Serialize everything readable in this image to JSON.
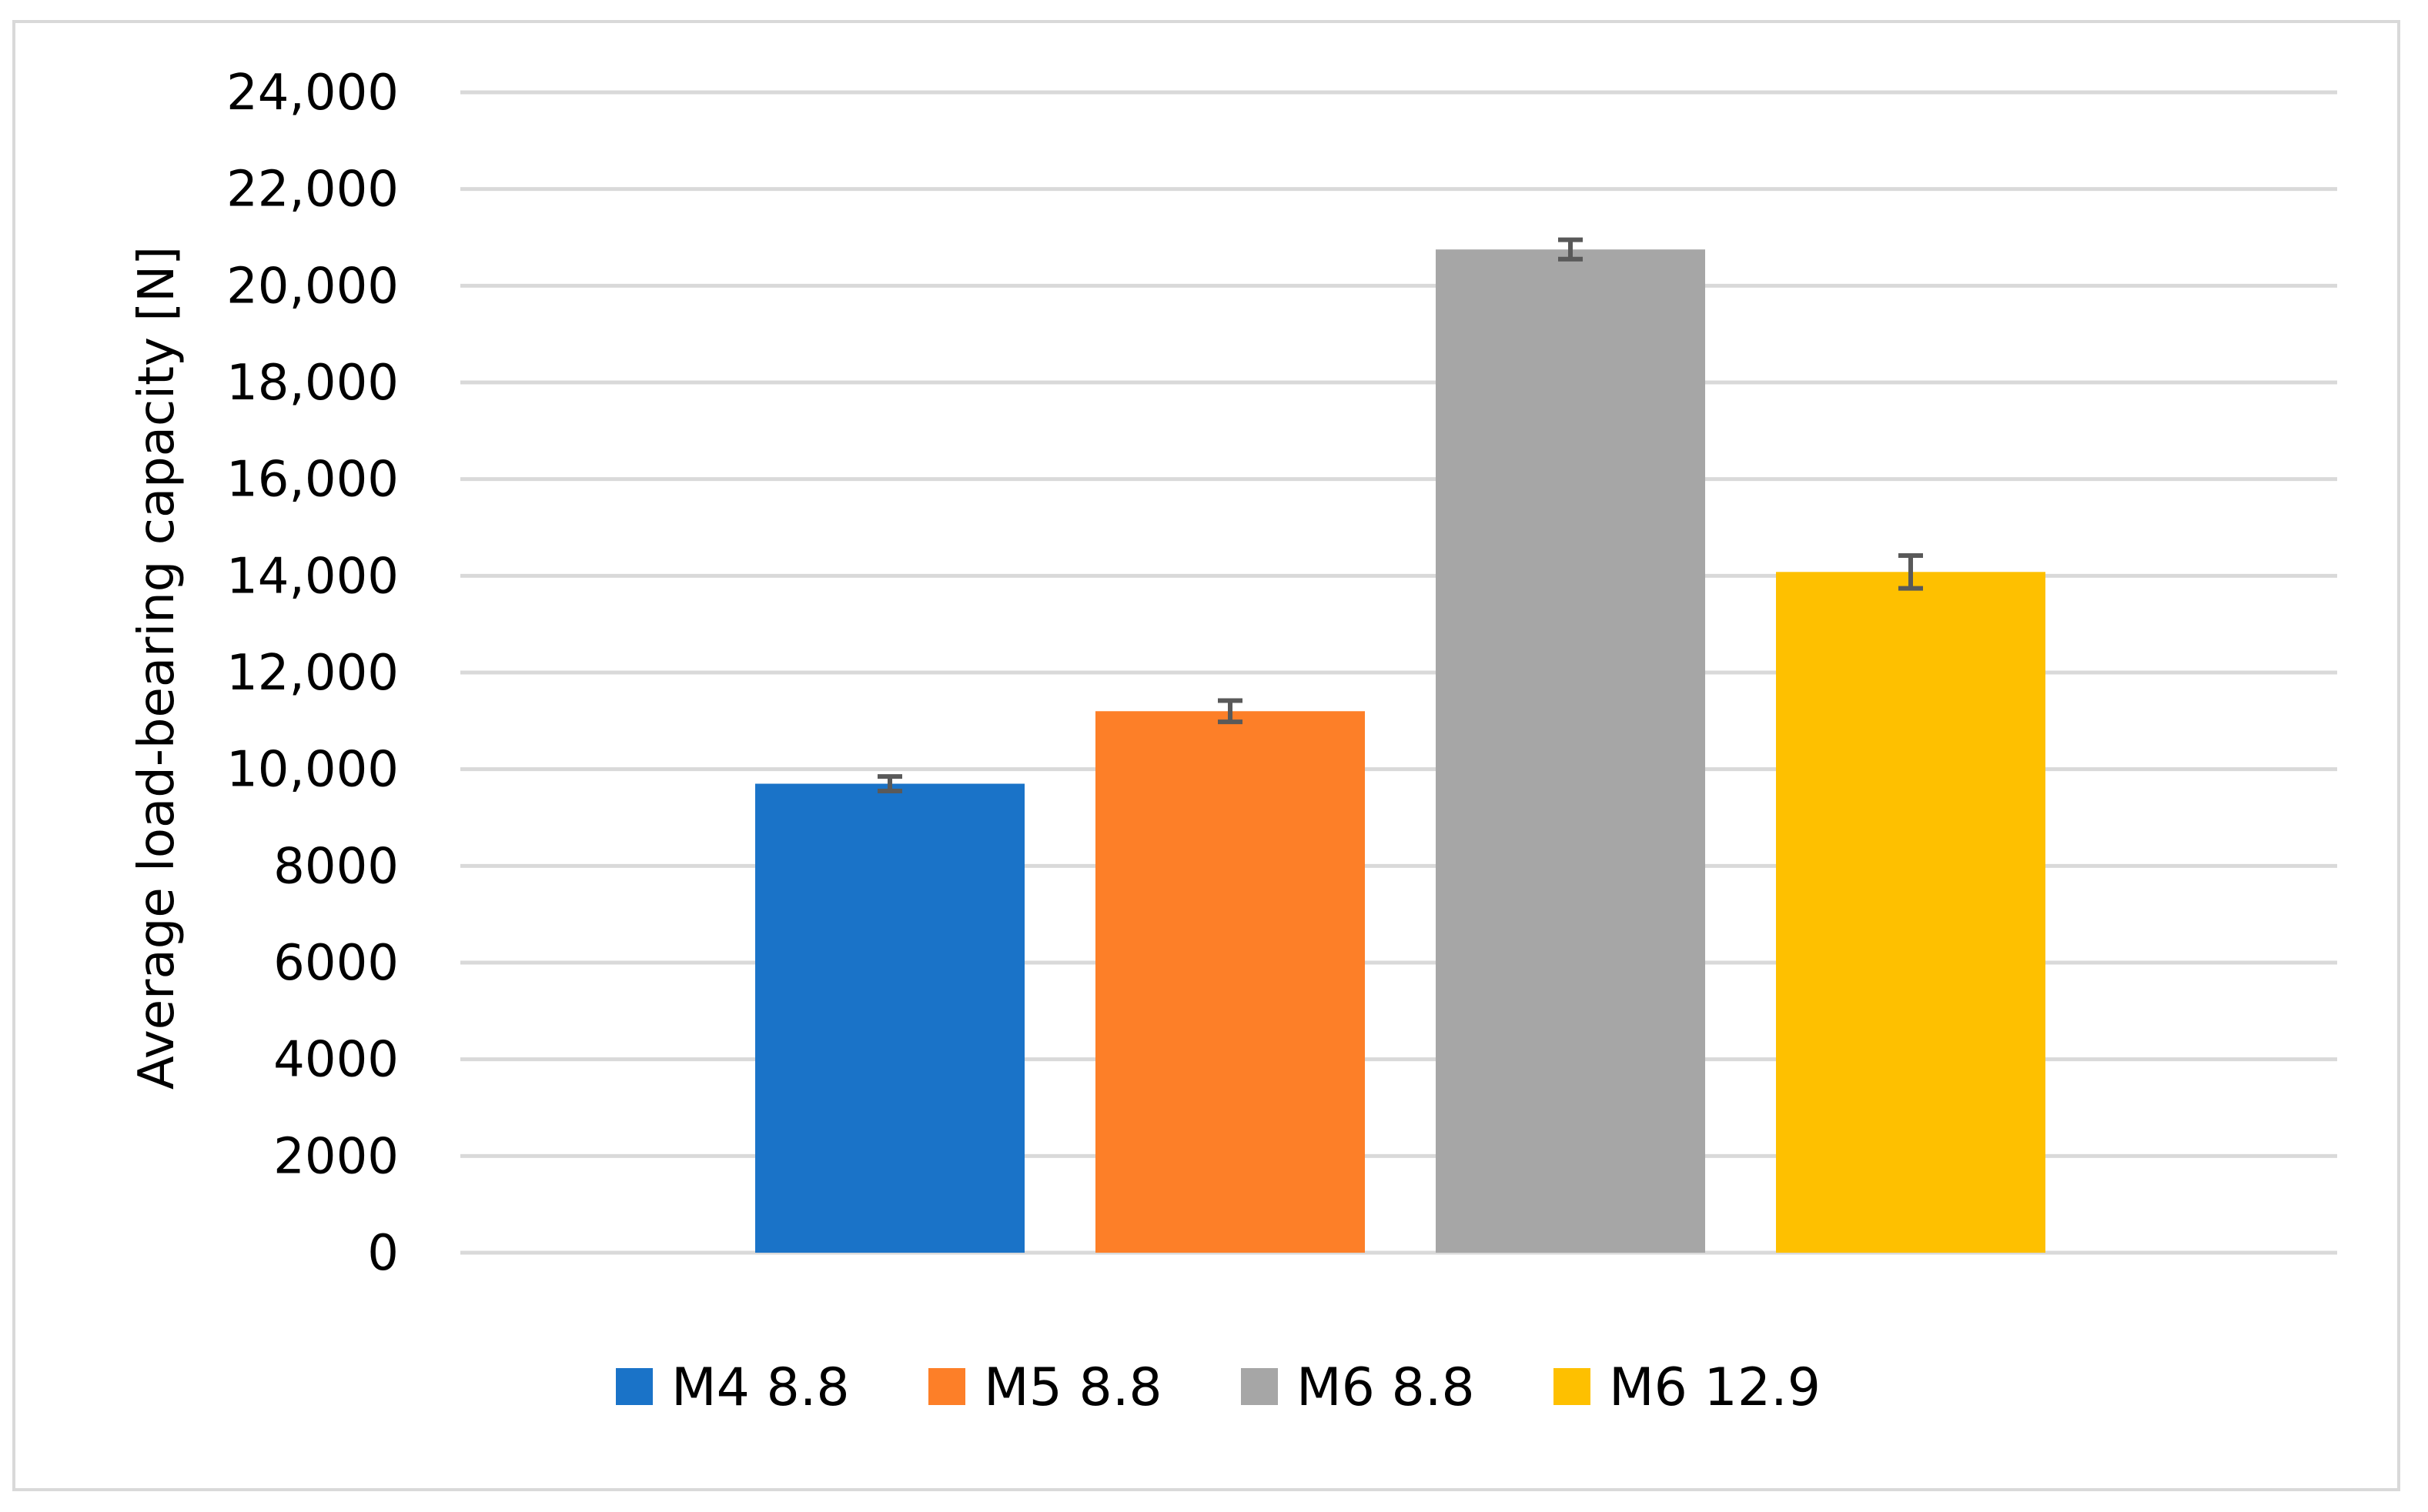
{
  "chart_data": {
    "type": "bar",
    "title": "",
    "xlabel": "",
    "ylabel": "Average load-bearing capacity [N]",
    "ylim": [
      0,
      24000
    ],
    "y_ticks": [
      0,
      2000,
      4000,
      6000,
      8000,
      10000,
      12000,
      14000,
      16000,
      18000,
      20000,
      22000,
      24000
    ],
    "y_tick_labels": [
      "0",
      "2000",
      "4000",
      "6000",
      "8000",
      "10,000",
      "12,000",
      "14,000",
      "16,000",
      "18,000",
      "20,000",
      "22,000",
      "24,000"
    ],
    "grid": true,
    "legend_position": "bottom",
    "series": [
      {
        "name": "M4 8.8",
        "value": 9700,
        "error": 150,
        "color": "#1a73c8"
      },
      {
        "name": "M5 8.8",
        "value": 11200,
        "error": 220,
        "color": "#fd7f28"
      },
      {
        "name": "M6 8.8",
        "value": 20750,
        "error": 200,
        "color": "#a6a6a6"
      },
      {
        "name": "M6 12.9",
        "value": 14080,
        "error": 340,
        "color": "#fec000"
      }
    ]
  }
}
